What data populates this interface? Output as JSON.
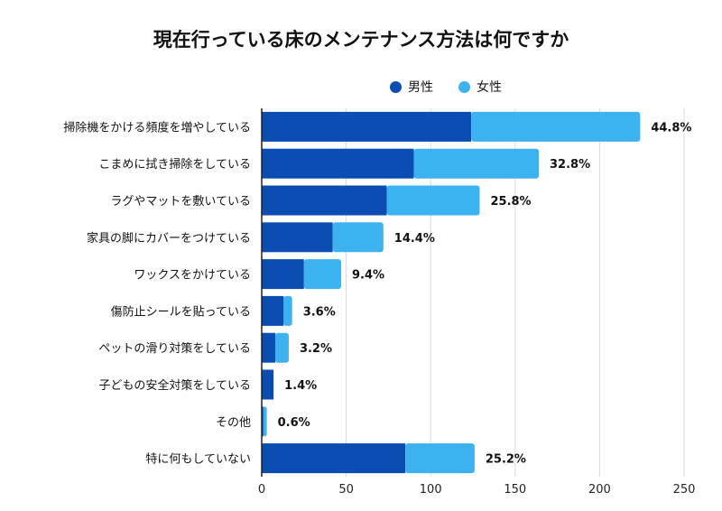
{
  "chart_data": {
    "type": "bar",
    "orientation": "horizontal",
    "stacked": true,
    "title": "現在行っている床のメンテナンス方法は何ですか",
    "categories": [
      "掃除機をかける頻度を増やしている",
      "こまめに拭き掃除をしている",
      "ラグやマットを敷いている",
      "家具の脚にカバーをつけている",
      "ワックスをかけている",
      "傷防止シールを貼っている",
      "ペットの滑り対策をしている",
      "子どもの安全対策をしている",
      "その他",
      "特に何もしていない"
    ],
    "series": [
      {
        "name": "男性",
        "color": "#0b4db3",
        "values": [
          124,
          90,
          74,
          42,
          25,
          13,
          8,
          7,
          1,
          85
        ]
      },
      {
        "name": "女性",
        "color": "#3db2f0",
        "values": [
          100,
          74,
          55,
          30,
          22,
          5,
          8,
          0,
          2,
          41
        ]
      }
    ],
    "data_labels": [
      "44.8%",
      "32.8%",
      "25.8%",
      "14.4%",
      "9.4%",
      "3.6%",
      "3.2%",
      "1.4%",
      "0.6%",
      "25.2%"
    ],
    "xlim": [
      0,
      250
    ],
    "xticks": [
      0,
      50,
      100,
      150,
      200,
      250
    ],
    "grid": true,
    "legend_position": "top-right"
  }
}
